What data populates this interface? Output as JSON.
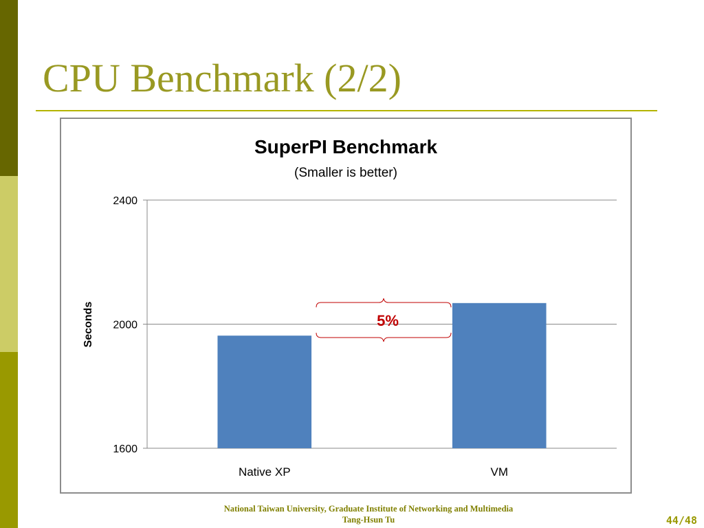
{
  "slide": {
    "title": "CPU Benchmark (2/2)",
    "footer_line1": "National Taiwan University, Graduate Institute of Networking and Multimedia",
    "footer_line2": "Tang-Hsun Tu",
    "page_number": "44/48",
    "colors": {
      "title": "#999922",
      "rule": "#b3b300",
      "stripe_top": "#666600",
      "stripe_mid": "#cccc66",
      "stripe_bottom": "#999900",
      "footer": "#808000"
    }
  },
  "chart_data": {
    "type": "bar",
    "title": "SuperPI Benchmark",
    "subtitle": "(Smaller is better)",
    "xlabel": "",
    "ylabel": "Seconds",
    "categories": [
      "Native XP",
      "VM"
    ],
    "values": [
      1963,
      2068
    ],
    "ylim": [
      1600,
      2400
    ],
    "yticks": [
      1600,
      2000,
      2400
    ],
    "grid": true,
    "legend": "none",
    "bar_color": "#4f81bd",
    "annotation": {
      "text": "5%",
      "color": "#c00000",
      "between": [
        "Native XP",
        "VM"
      ]
    }
  }
}
